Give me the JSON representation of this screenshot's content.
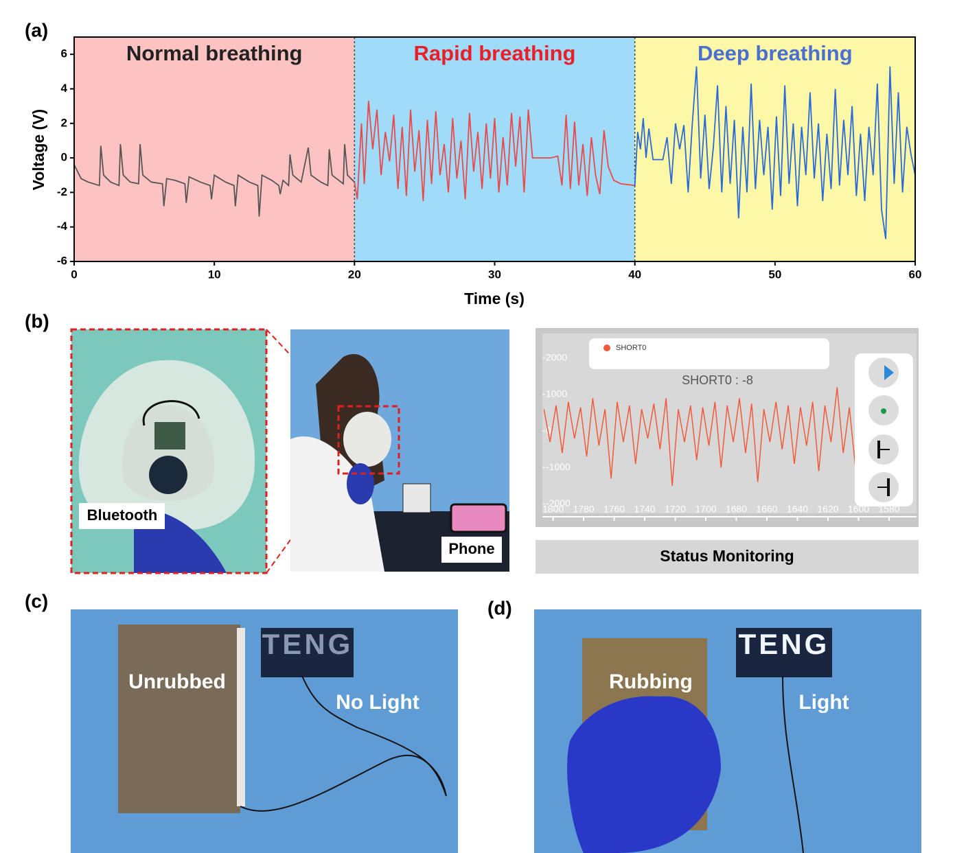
{
  "panel_labels": [
    "(a)",
    "(b)",
    "(c)",
    "(d)"
  ],
  "chart_data": [
    {
      "type": "line",
      "x_label": "Time (s)",
      "y_label": "Voltage (V)",
      "xlim": [
        0,
        60
      ],
      "ylim": [
        -6,
        7
      ],
      "xticks": [
        0,
        10,
        20,
        30,
        40,
        50,
        60
      ],
      "yticks": [
        -6,
        -4,
        -2,
        0,
        2,
        4,
        6
      ],
      "series": [
        {
          "name": "Normal breathing",
          "label_color": "#222222",
          "color": "#555555",
          "background": "#fdc3c3",
          "span": [
            0,
            20
          ],
          "x": [
            0,
            0.5,
            1,
            1.8,
            1.9,
            2.1,
            2.6,
            3.2,
            3.3,
            3.5,
            4.0,
            4.6,
            4.7,
            4.9,
            5.5,
            6.3,
            6.4,
            6.6,
            7.2,
            7.9,
            8.0,
            8.2,
            9.0,
            9.7,
            9.8,
            10.0,
            10.8,
            11.4,
            11.5,
            11.7,
            12.5,
            13.1,
            13.2,
            13.4,
            14.1,
            14.6,
            14.7,
            14.9,
            15.3,
            15.4,
            15.6,
            16.2,
            16.7,
            16.9,
            17.6,
            18.1,
            18.2,
            18.4,
            19.2,
            19.3,
            19.5,
            20
          ],
          "values": [
            -0.4,
            -1.2,
            -1.4,
            -1.6,
            0.7,
            -1.0,
            -1.4,
            -1.6,
            0.8,
            -1.0,
            -1.4,
            -1.5,
            0.8,
            -1.0,
            -1.4,
            -1.5,
            -2.8,
            -1.2,
            -1.3,
            -1.5,
            -2.6,
            -1.1,
            -1.4,
            -1.6,
            -2.4,
            -1.0,
            -1.4,
            -1.6,
            -2.8,
            -1.0,
            -1.4,
            -1.6,
            -3.4,
            -1.0,
            -1.3,
            -1.6,
            -2.1,
            -1.3,
            -1.6,
            0.2,
            -1.0,
            -1.4,
            0.6,
            -1.0,
            -1.4,
            -1.6,
            0.5,
            -1.0,
            -1.5,
            0.8,
            -1.0,
            -1.4
          ]
        },
        {
          "name": "Rapid breathing",
          "label_color": "#e8202a",
          "color": "#e84a4a",
          "background": "#a0dcfa",
          "span": [
            20,
            40
          ],
          "x": [
            20,
            20.2,
            20.5,
            20.7,
            21,
            21.3,
            21.6,
            21.9,
            22.2,
            22.5,
            22.8,
            23.1,
            23.4,
            23.7,
            24,
            24.3,
            24.6,
            24.9,
            25.2,
            25.5,
            25.8,
            26.1,
            26.4,
            26.7,
            27,
            27.3,
            27.6,
            27.9,
            28.2,
            28.5,
            28.8,
            29.1,
            29.4,
            29.7,
            30,
            30.3,
            30.6,
            30.9,
            31.2,
            31.5,
            31.8,
            32.1,
            32.4,
            32.7,
            33,
            33.5,
            34,
            34.5,
            34.8,
            35.1,
            35.4,
            35.7,
            36,
            36.3,
            36.6,
            36.9,
            37.2,
            37.5,
            37.8,
            38.1,
            38.5,
            39,
            40
          ],
          "values": [
            -1.4,
            -2.4,
            2.0,
            -1.5,
            3.3,
            0.5,
            2.8,
            -1.0,
            1.5,
            -0.2,
            2.5,
            -1.8,
            1.8,
            -2.2,
            2.8,
            -0.8,
            1.6,
            -2.5,
            2.2,
            -1.5,
            2.7,
            -1.0,
            0.8,
            -2.0,
            2.3,
            -1.2,
            1.0,
            -2.4,
            2.6,
            -0.8,
            1.5,
            -1.8,
            2.0,
            -1.2,
            2.3,
            -2.0,
            1.2,
            -1.6,
            2.6,
            -0.5,
            2.4,
            -2.0,
            2.8,
            0.0,
            0.0,
            0.0,
            0.0,
            0.1,
            -1.6,
            2.5,
            -1.8,
            2.1,
            -1.6,
            0.8,
            -2.2,
            1.2,
            -1.0,
            -2.1,
            1.6,
            -0.5,
            -1.3,
            -1.5,
            -1.6
          ]
        },
        {
          "name": "Deep breathing",
          "label_color": "#4a6fd0",
          "color": "#2a6ad8",
          "background": "#fcf8a8",
          "span": [
            40,
            60
          ],
          "x": [
            40,
            40.2,
            40.4,
            40.6,
            40.8,
            41,
            41.3,
            42,
            42.3,
            42.6,
            42.9,
            43.2,
            43.5,
            43.8,
            44.1,
            44.4,
            44.7,
            45,
            45.3,
            45.6,
            45.9,
            46.2,
            46.5,
            46.8,
            47.1,
            47.4,
            47.7,
            48,
            48.3,
            48.6,
            48.9,
            49.2,
            49.5,
            49.8,
            50.1,
            50.4,
            50.7,
            51,
            51.3,
            51.6,
            51.9,
            52.2,
            52.5,
            52.8,
            53.1,
            53.4,
            53.7,
            54,
            54.3,
            54.6,
            54.9,
            55.2,
            55.5,
            55.8,
            56.1,
            56.4,
            56.7,
            57,
            57.3,
            57.6,
            57.9,
            58.2,
            58.5,
            58.8,
            59.1,
            59.4,
            59.7,
            60
          ],
          "values": [
            -1.6,
            1.5,
            0.5,
            2.3,
            0.0,
            1.7,
            -0.1,
            -0.1,
            1.2,
            -1.5,
            2.0,
            0.5,
            1.9,
            -2.0,
            2.0,
            5.3,
            -1.2,
            2.5,
            -1.8,
            0.6,
            4.2,
            -2.0,
            3.0,
            -1.5,
            2.2,
            -3.5,
            1.8,
            -2.0,
            4.3,
            -1.8,
            2.2,
            -1.0,
            1.8,
            -3.0,
            2.4,
            -2.2,
            4.2,
            -1.5,
            2.0,
            -2.8,
            1.8,
            -1.0,
            3.8,
            -1.2,
            2.0,
            -2.5,
            1.4,
            -1.8,
            4.0,
            -1.6,
            2.2,
            -1.0,
            3.0,
            -2.2,
            1.4,
            -2.5,
            1.8,
            -1.0,
            4.3,
            -3.0,
            -4.7,
            5.3,
            -1.5,
            3.8,
            -2.0,
            1.8,
            0.2,
            -1.0
          ]
        }
      ]
    },
    {
      "type": "line",
      "readout": "SHORT0 : -8",
      "xlim": [
        1807,
        1562
      ],
      "ylim": [
        -2200,
        2600
      ],
      "xticks": [
        1800,
        1780,
        1760,
        1740,
        1720,
        1700,
        1680,
        1660,
        1640,
        1620,
        1600,
        1580
      ],
      "yticks": [
        -2000,
        -1000,
        0,
        1000,
        2000
      ],
      "series": [
        {
          "name": "SHORT0",
          "color": "#f05a3a",
          "x": [
            1806,
            1802,
            1798,
            1794,
            1790,
            1786,
            1782,
            1778,
            1774,
            1770,
            1766,
            1762,
            1758,
            1754,
            1750,
            1746,
            1742,
            1738,
            1734,
            1730,
            1726,
            1722,
            1718,
            1714,
            1710,
            1706,
            1702,
            1698,
            1694,
            1690,
            1686,
            1682,
            1678,
            1674,
            1670,
            1666,
            1662,
            1658,
            1654,
            1650,
            1646,
            1642,
            1638,
            1634,
            1630,
            1626,
            1622,
            1618,
            1614,
            1610,
            1606,
            1602,
            1598,
            1594,
            1590,
            1586,
            1582,
            1578,
            1574,
            1570,
            1566
          ],
          "values": [
            600,
            -300,
            700,
            -600,
            800,
            -200,
            650,
            -700,
            900,
            -400,
            600,
            -1300,
            800,
            -300,
            700,
            -900,
            600,
            -200,
            750,
            -500,
            900,
            -1500,
            600,
            -300,
            700,
            -800,
            650,
            -400,
            800,
            -1000,
            700,
            -300,
            900,
            -600,
            750,
            -1400,
            600,
            -300,
            800,
            -500,
            700,
            -900,
            650,
            -400,
            800,
            -1100,
            700,
            -300,
            1200,
            -600,
            650,
            -1000,
            700,
            -400,
            1400,
            -200,
            800,
            -1300,
            700,
            -300,
            500
          ]
        }
      ]
    }
  ],
  "panel_b": {
    "photo_labels": [
      "Bluetooth",
      "Phone"
    ],
    "status_title": "Status Monitoring"
  },
  "panel_c": {
    "board_text": "TENG",
    "labels": [
      "Unrubbed",
      "No Light"
    ]
  },
  "panel_d": {
    "board_text": "TENG",
    "labels": [
      "Rubbing",
      "Light"
    ]
  }
}
